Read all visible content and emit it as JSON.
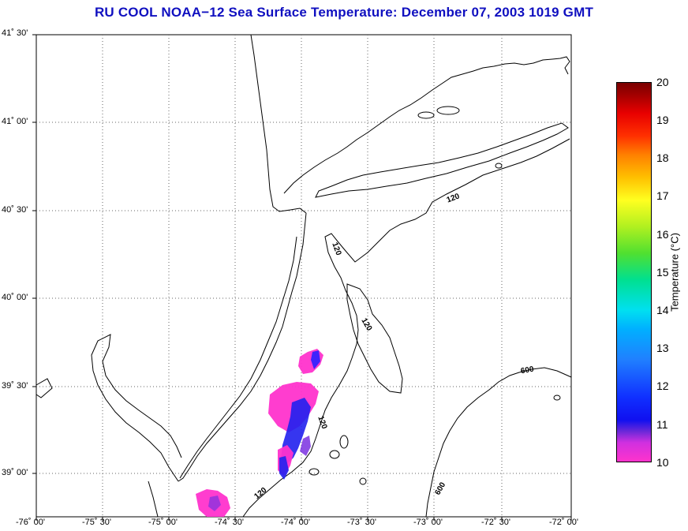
{
  "title": "RU COOL  NOAA−12  Sea Surface Temperature:  December 07, 2003 1019 GMT",
  "colorbar": {
    "title": "Temperature (°C)",
    "ticks": [
      "20",
      "19",
      "18",
      "17",
      "16",
      "15",
      "14",
      "13",
      "12",
      "11",
      "10"
    ]
  },
  "lat_labels": [
    "41˚ 30'",
    "41˚ 00'",
    "40˚ 30'",
    "40˚ 00'",
    "39˚ 30'",
    "39˚ 00'"
  ],
  "lon_labels": [
    "-76˚ 00'",
    "-75˚ 30'",
    "-75˚ 00'",
    "-74˚ 30'",
    "-74˚ 00'",
    "-73˚ 30'",
    "-73˚ 00'",
    "-72˚ 30'",
    "-72˚ 00'"
  ],
  "contour_labels": [
    "120",
    "120",
    "120",
    "120",
    "120",
    "600",
    "600"
  ],
  "colors": {
    "title": "#1010c0",
    "sst_min": "#ff33cc",
    "sst_mid": "#1a1aff"
  }
}
